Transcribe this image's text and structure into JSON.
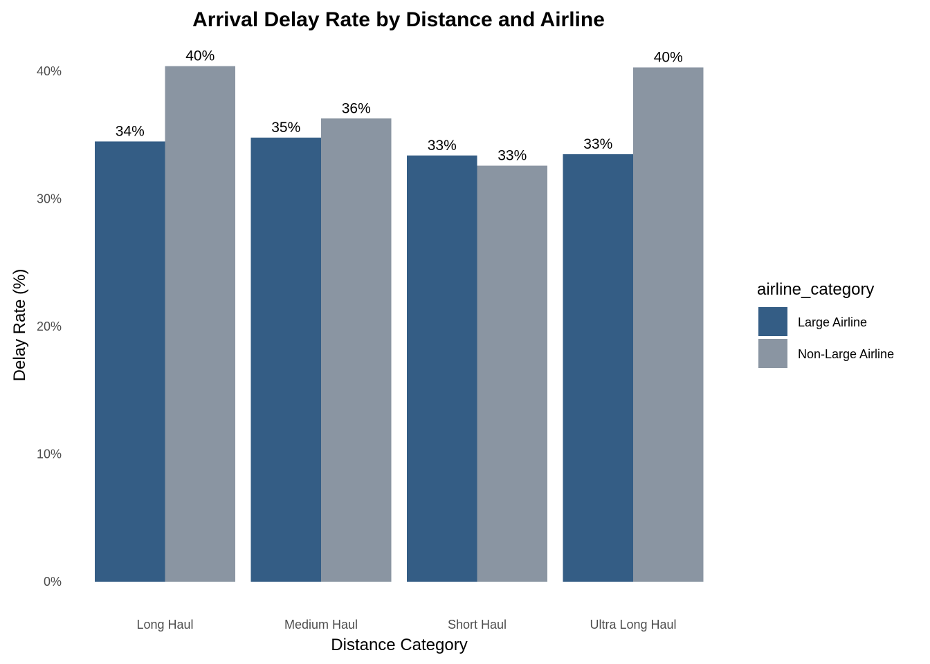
{
  "chart_data": {
    "type": "bar",
    "title": "Arrival Delay Rate by Distance and Airline",
    "xlabel": "Distance Category",
    "ylabel": "Delay Rate (%)",
    "categories": [
      "Long Haul",
      "Medium Haul",
      "Short Haul",
      "Ultra Long Haul"
    ],
    "series": [
      {
        "name": "Large Airline",
        "color": "#345d85",
        "values": [
          34.5,
          34.8,
          33.4,
          33.5
        ],
        "labels": [
          "34%",
          "35%",
          "33%",
          "33%"
        ]
      },
      {
        "name": "Non-Large Airline",
        "color": "#8a95a2",
        "values": [
          40.4,
          36.3,
          32.6,
          40.3
        ],
        "labels": [
          "40%",
          "36%",
          "33%",
          "40%"
        ]
      }
    ],
    "ylim": [
      0,
      42
    ],
    "yticks": [
      0,
      10,
      20,
      30,
      40
    ],
    "ytick_labels": [
      "0%",
      "10%",
      "20%",
      "30%",
      "40%"
    ],
    "grid": false,
    "legend": {
      "title": "airline_category",
      "position": "right"
    }
  }
}
